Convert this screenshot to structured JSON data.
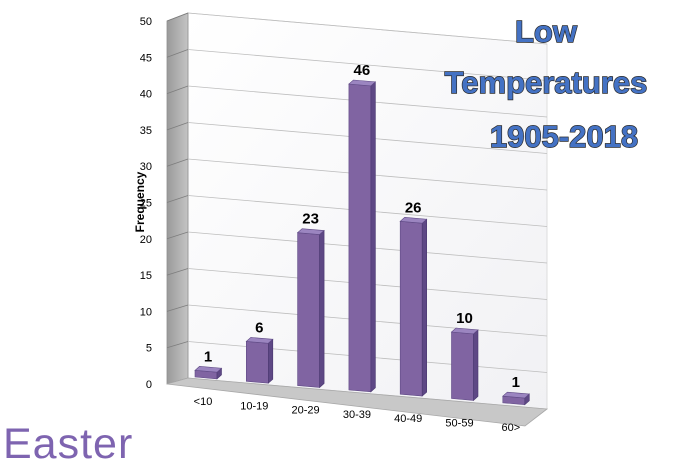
{
  "chart_data": {
    "type": "bar",
    "title_lines": [
      "Low",
      "Temperatures",
      "1905-2018"
    ],
    "xlabel": "",
    "ylabel": "Frequency",
    "categories": [
      "<10",
      "10-19",
      "20-29",
      "30-39",
      "40-49",
      "50-59",
      "60>"
    ],
    "values": [
      1,
      6,
      23,
      46,
      26,
      10,
      1
    ],
    "ylim": [
      0,
      50
    ],
    "yticks": [
      0,
      5,
      10,
      15,
      20,
      25,
      30,
      35,
      40,
      45,
      50
    ],
    "grid": true,
    "legend": "none",
    "bar_color": "#8064a2",
    "title_color": "#4472c4"
  },
  "caption": "Easter",
  "caption_color": "#7e64b0"
}
